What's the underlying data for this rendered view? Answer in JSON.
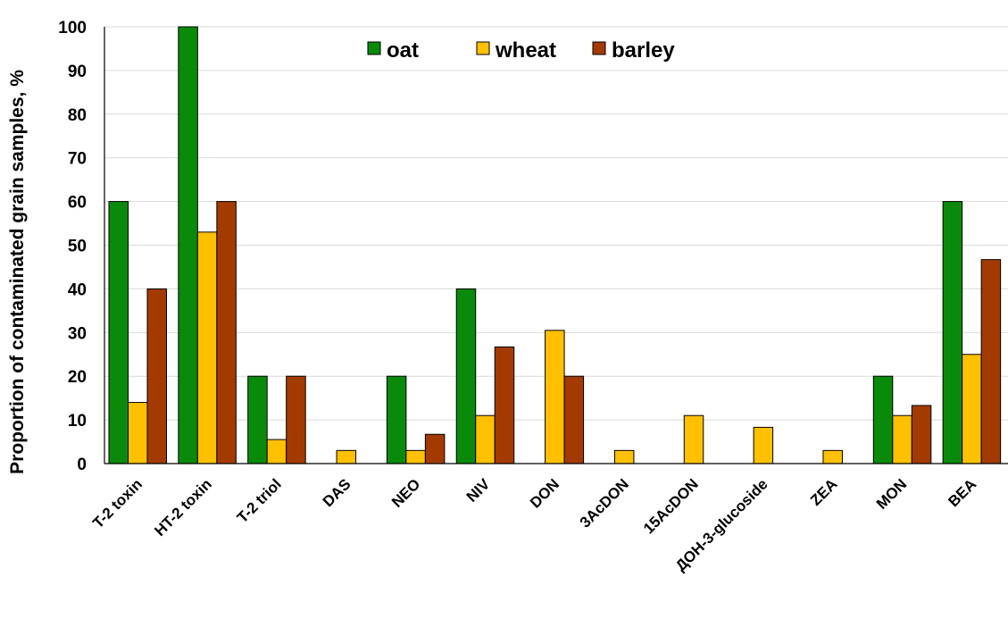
{
  "chart_data": {
    "type": "bar",
    "title": "",
    "xlabel": "",
    "ylabel": "Proportion of contaminated grain samples, %",
    "ylim": [
      0,
      100
    ],
    "yticks": [
      0,
      10,
      20,
      30,
      40,
      50,
      60,
      70,
      80,
      90,
      100
    ],
    "grid": true,
    "legend_position": "top-center",
    "categories": [
      "T-2 toxin",
      "HT-2 toxin",
      "T-2 triol",
      "DAS",
      "NEO",
      "NIV",
      "DON",
      "3AcDON",
      "15AcDON",
      "ДОН-3-glucoside",
      "ZEA",
      "MON",
      "BEA"
    ],
    "series": [
      {
        "name": "oat",
        "color": "#0a8a0a",
        "values": [
          60,
          100,
          20,
          0,
          20,
          40,
          0,
          0,
          0,
          0,
          0,
          20,
          60
        ]
      },
      {
        "name": "wheat",
        "color": "#ffc000",
        "values": [
          14,
          53,
          5.5,
          3,
          3,
          11,
          30.5,
          3,
          11,
          8.3,
          3,
          11,
          25
        ]
      },
      {
        "name": "barley",
        "color": "#a33b00",
        "values": [
          40,
          60,
          20,
          0,
          6.7,
          26.7,
          20,
          0,
          0,
          0,
          0,
          13.3,
          46.7
        ]
      }
    ]
  }
}
